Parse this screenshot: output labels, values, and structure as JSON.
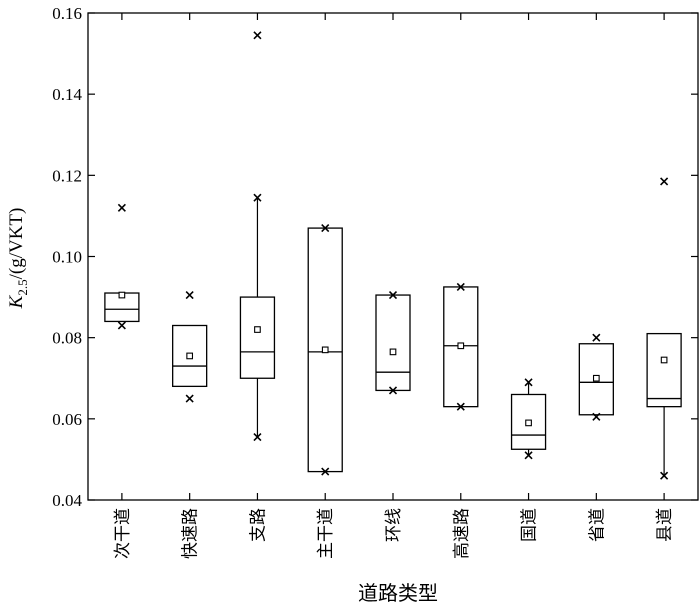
{
  "chart_data": {
    "type": "box",
    "xlabel": "道路类型",
    "ylabel": {
      "symbol": "K",
      "subscript": "2.5",
      "unit": "/(g/VKT)"
    },
    "ylim": [
      0.04,
      0.16
    ],
    "yticks": [
      "0.04",
      "0.06",
      "0.08",
      "0.10",
      "0.12",
      "0.14",
      "0.16"
    ],
    "categories": [
      "次干道",
      "快速路",
      "支路",
      "主干道",
      "环线",
      "高速路",
      "国道",
      "省道",
      "县道"
    ],
    "boxes": [
      {
        "q1": 0.084,
        "median": 0.087,
        "q3": 0.091,
        "mean": 0.0905,
        "whisker_low": null,
        "whisker_high": null,
        "extremes": [
          0.083
        ],
        "outliers": [
          0.112
        ]
      },
      {
        "q1": 0.068,
        "median": 0.073,
        "q3": 0.083,
        "mean": 0.0755,
        "whisker_low": null,
        "whisker_high": null,
        "extremes": [
          0.065,
          0.0905
        ],
        "outliers": []
      },
      {
        "q1": 0.07,
        "median": 0.0765,
        "q3": 0.09,
        "mean": 0.082,
        "whisker_low": 0.0555,
        "whisker_high": 0.1145,
        "extremes": [
          0.0555,
          0.1145
        ],
        "outliers": [
          0.1545
        ]
      },
      {
        "q1": 0.047,
        "median": 0.0765,
        "q3": 0.107,
        "mean": 0.077,
        "whisker_low": null,
        "whisker_high": null,
        "extremes": [
          0.047,
          0.107
        ],
        "outliers": []
      },
      {
        "q1": 0.067,
        "median": 0.0715,
        "q3": 0.0905,
        "mean": 0.0765,
        "whisker_low": null,
        "whisker_high": null,
        "extremes": [
          0.067,
          0.0905
        ],
        "outliers": []
      },
      {
        "q1": 0.063,
        "median": 0.078,
        "q3": 0.0925,
        "mean": 0.078,
        "whisker_low": null,
        "whisker_high": null,
        "extremes": [
          0.063,
          0.0925
        ],
        "outliers": []
      },
      {
        "q1": 0.0525,
        "median": 0.056,
        "q3": 0.066,
        "mean": 0.059,
        "whisker_low": 0.051,
        "whisker_high": 0.069,
        "extremes": [
          0.051,
          0.069
        ],
        "outliers": []
      },
      {
        "q1": 0.061,
        "median": 0.069,
        "q3": 0.0785,
        "mean": 0.07,
        "whisker_low": null,
        "whisker_high": null,
        "extremes": [
          0.0605,
          0.08
        ],
        "outliers": []
      },
      {
        "q1": 0.063,
        "median": 0.065,
        "q3": 0.081,
        "mean": 0.0745,
        "whisker_low": 0.046,
        "whisker_high": null,
        "extremes": [
          0.046
        ],
        "outliers": [
          0.1185
        ]
      }
    ]
  }
}
